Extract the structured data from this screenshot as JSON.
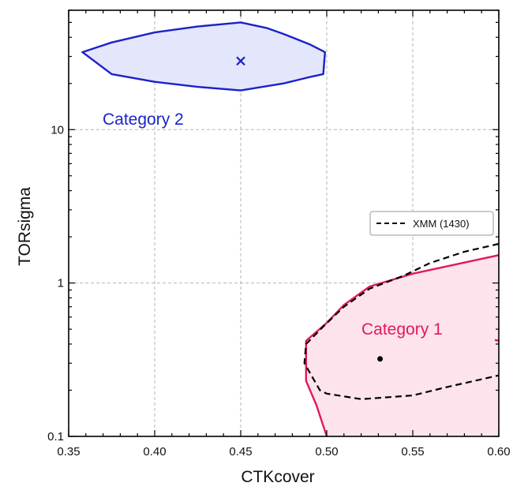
{
  "chart_data": {
    "type": "contour",
    "xlabel": "CTKcover",
    "ylabel": "TORsigma",
    "xlim": [
      0.35,
      0.6
    ],
    "ylim": [
      0.1,
      60
    ],
    "yscale": "log",
    "grid": true,
    "x_ticks": [
      0.35,
      0.4,
      0.45,
      0.5,
      0.55,
      0.6
    ],
    "x_tick_labels": [
      "0.35",
      "0.40",
      "0.45",
      "0.50",
      "0.55",
      "0.60"
    ],
    "y_ticks": [
      0.1,
      1,
      10
    ],
    "y_tick_labels": [
      "0.1",
      "1",
      "10"
    ],
    "legend": {
      "placement": "right",
      "entries": [
        {
          "label": "XMM (1430)",
          "style": "dashed",
          "color": "#000000"
        }
      ]
    },
    "regions": [
      {
        "name": "Category 2",
        "edge_color": "#1a23c8",
        "fill_color": "#e4e6fb",
        "marker": "x",
        "center": [
          0.45,
          28
        ],
        "contour": [
          [
            0.358,
            32
          ],
          [
            0.375,
            37
          ],
          [
            0.4,
            43
          ],
          [
            0.425,
            47
          ],
          [
            0.45,
            50
          ],
          [
            0.465,
            46
          ],
          [
            0.475,
            42
          ],
          [
            0.49,
            36
          ],
          [
            0.499,
            32
          ],
          [
            0.498,
            23
          ],
          [
            0.49,
            22
          ],
          [
            0.475,
            20
          ],
          [
            0.45,
            18
          ],
          [
            0.425,
            19
          ],
          [
            0.4,
            20.5
          ],
          [
            0.375,
            23
          ]
        ]
      },
      {
        "name": "Category 1",
        "edge_color": "#e0195a",
        "fill_color": "#fde3ec",
        "marker": "dot",
        "center": [
          0.531,
          0.32
        ],
        "contour": [
          [
            0.6,
            1.52
          ],
          [
            0.55,
            1.15
          ],
          [
            0.525,
            0.95
          ],
          [
            0.51,
            0.72
          ],
          [
            0.5,
            0.55
          ],
          [
            0.488,
            0.42
          ],
          [
            0.488,
            0.23
          ],
          [
            0.494,
            0.16
          ],
          [
            0.5,
            0.1
          ],
          [
            0.6,
            0.1
          ],
          [
            0.6,
            0.42
          ]
        ]
      }
    ],
    "series": [
      {
        "name": "XMM (1430)",
        "style": "dashed",
        "color": "#000000",
        "contour": [
          [
            0.6,
            1.8
          ],
          [
            0.58,
            1.6
          ],
          [
            0.56,
            1.35
          ],
          [
            0.545,
            1.12
          ],
          [
            0.525,
            0.92
          ],
          [
            0.51,
            0.7
          ],
          [
            0.498,
            0.52
          ],
          [
            0.488,
            0.4
          ],
          [
            0.487,
            0.3
          ],
          [
            0.496,
            0.2
          ],
          [
            0.5,
            0.19
          ],
          [
            0.52,
            0.175
          ],
          [
            0.55,
            0.185
          ],
          [
            0.57,
            0.21
          ],
          [
            0.6,
            0.25
          ]
        ]
      }
    ]
  }
}
